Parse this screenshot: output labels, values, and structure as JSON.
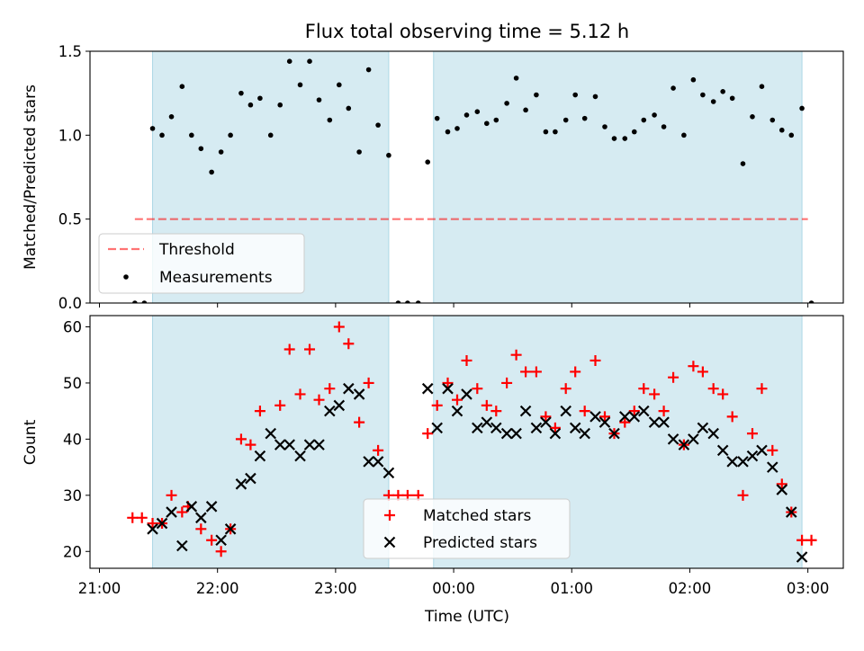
{
  "figure": {
    "title": "Flux total observing time = 5.12 h",
    "xlabel": "Time (UTC)",
    "x_tick_labels": [
      "21:00",
      "22:00",
      "23:00",
      "00:00",
      "01:00",
      "02:00",
      "03:00"
    ]
  },
  "colors": {
    "shade": "#add8e6",
    "threshold": "#ff0000",
    "measurement": "#000000",
    "matched": "#ff0000",
    "predicted": "#000000"
  },
  "chart_data": [
    {
      "type": "scatter",
      "ylabel": "Matched/Predicted stars",
      "x_unit": "hours since 21:00 UTC",
      "xlim": [
        -0.08,
        6.3
      ],
      "ylim": [
        0,
        1.5
      ],
      "y_tick_labels": [
        "0.0",
        "0.5",
        "1.0",
        "1.5"
      ],
      "y_ticks": [
        0,
        0.5,
        1.0,
        1.5
      ],
      "shaded_intervals": [
        [
          0.45,
          2.45
        ],
        [
          2.83,
          5.95
        ]
      ],
      "threshold": {
        "name": "Threshold",
        "value": 0.5,
        "x_range": [
          0.3,
          6.0
        ]
      },
      "legend": {
        "placement": "lower-left",
        "entries": [
          "Threshold",
          "Measurements"
        ]
      },
      "series": [
        {
          "name": "Measurements",
          "points": [
            [
              0.3,
              0.0
            ],
            [
              0.38,
              0.0
            ],
            [
              0.45,
              1.04
            ],
            [
              0.53,
              1.0
            ],
            [
              0.61,
              1.11
            ],
            [
              0.7,
              1.29
            ],
            [
              0.78,
              1.0
            ],
            [
              0.86,
              0.92
            ],
            [
              0.95,
              0.78
            ],
            [
              1.03,
              0.9
            ],
            [
              1.11,
              1.0
            ],
            [
              1.2,
              1.25
            ],
            [
              1.28,
              1.18
            ],
            [
              1.36,
              1.22
            ],
            [
              1.45,
              1.0
            ],
            [
              1.53,
              1.18
            ],
            [
              1.61,
              1.44
            ],
            [
              1.7,
              1.3
            ],
            [
              1.78,
              1.44
            ],
            [
              1.86,
              1.21
            ],
            [
              1.95,
              1.09
            ],
            [
              2.03,
              1.3
            ],
            [
              2.11,
              1.16
            ],
            [
              2.2,
              0.9
            ],
            [
              2.28,
              1.39
            ],
            [
              2.36,
              1.06
            ],
            [
              2.45,
              0.88
            ],
            [
              2.53,
              0.0
            ],
            [
              2.61,
              0.0
            ],
            [
              2.7,
              0.0
            ],
            [
              2.78,
              0.84
            ],
            [
              2.86,
              1.1
            ],
            [
              2.95,
              1.02
            ],
            [
              3.03,
              1.04
            ],
            [
              3.11,
              1.12
            ],
            [
              3.2,
              1.14
            ],
            [
              3.28,
              1.07
            ],
            [
              3.36,
              1.09
            ],
            [
              3.45,
              1.19
            ],
            [
              3.53,
              1.34
            ],
            [
              3.61,
              1.15
            ],
            [
              3.7,
              1.24
            ],
            [
              3.78,
              1.02
            ],
            [
              3.86,
              1.02
            ],
            [
              3.95,
              1.09
            ],
            [
              4.03,
              1.24
            ],
            [
              4.11,
              1.1
            ],
            [
              4.2,
              1.23
            ],
            [
              4.28,
              1.05
            ],
            [
              4.36,
              0.98
            ],
            [
              4.45,
              0.98
            ],
            [
              4.53,
              1.02
            ],
            [
              4.61,
              1.09
            ],
            [
              4.7,
              1.12
            ],
            [
              4.78,
              1.05
            ],
            [
              4.86,
              1.28
            ],
            [
              4.95,
              1.0
            ],
            [
              5.03,
              1.33
            ],
            [
              5.11,
              1.24
            ],
            [
              5.2,
              1.2
            ],
            [
              5.28,
              1.26
            ],
            [
              5.36,
              1.22
            ],
            [
              5.45,
              0.83
            ],
            [
              5.53,
              1.11
            ],
            [
              5.61,
              1.29
            ],
            [
              5.7,
              1.09
            ],
            [
              5.78,
              1.03
            ],
            [
              5.86,
              1.0
            ],
            [
              5.95,
              1.16
            ],
            [
              6.03,
              0.0
            ]
          ]
        }
      ]
    },
    {
      "type": "scatter",
      "ylabel": "Count",
      "x_unit": "hours since 21:00 UTC",
      "xlim": [
        -0.08,
        6.3
      ],
      "ylim": [
        17,
        62
      ],
      "y_tick_labels": [
        "20",
        "30",
        "40",
        "50",
        "60"
      ],
      "y_ticks": [
        20,
        30,
        40,
        50,
        60
      ],
      "shaded_intervals": [
        [
          0.45,
          2.45
        ],
        [
          2.83,
          5.95
        ]
      ],
      "legend": {
        "placement": "lower-center",
        "entries": [
          "Matched stars",
          "Predicted stars"
        ]
      },
      "series": [
        {
          "name": "Matched stars",
          "marker": "plus",
          "points": [
            [
              0.28,
              26
            ],
            [
              0.36,
              26
            ],
            [
              0.45,
              25
            ],
            [
              0.53,
              25
            ],
            [
              0.61,
              30
            ],
            [
              0.7,
              27
            ],
            [
              0.75,
              28
            ],
            [
              0.86,
              24
            ],
            [
              0.95,
              22
            ],
            [
              1.03,
              20
            ],
            [
              1.11,
              24
            ],
            [
              1.2,
              40
            ],
            [
              1.28,
              39
            ],
            [
              1.36,
              45
            ],
            [
              1.53,
              46
            ],
            [
              1.61,
              56
            ],
            [
              1.7,
              48
            ],
            [
              1.78,
              56
            ],
            [
              1.86,
              47
            ],
            [
              1.95,
              49
            ],
            [
              2.03,
              60
            ],
            [
              2.11,
              57
            ],
            [
              2.2,
              43
            ],
            [
              2.28,
              50
            ],
            [
              2.36,
              38
            ],
            [
              2.45,
              30
            ],
            [
              2.53,
              30
            ],
            [
              2.61,
              30
            ],
            [
              2.7,
              30
            ],
            [
              2.78,
              41
            ],
            [
              2.86,
              46
            ],
            [
              2.95,
              50
            ],
            [
              3.03,
              47
            ],
            [
              3.11,
              54
            ],
            [
              3.2,
              49
            ],
            [
              3.28,
              46
            ],
            [
              3.36,
              45
            ],
            [
              3.45,
              50
            ],
            [
              3.53,
              55
            ],
            [
              3.61,
              52
            ],
            [
              3.7,
              52
            ],
            [
              3.78,
              44
            ],
            [
              3.86,
              42
            ],
            [
              3.95,
              49
            ],
            [
              4.03,
              52
            ],
            [
              4.11,
              45
            ],
            [
              4.2,
              54
            ],
            [
              4.28,
              44
            ],
            [
              4.36,
              41
            ],
            [
              4.45,
              43
            ],
            [
              4.53,
              45
            ],
            [
              4.61,
              49
            ],
            [
              4.7,
              48
            ],
            [
              4.78,
              45
            ],
            [
              4.86,
              51
            ],
            [
              4.95,
              39
            ],
            [
              5.03,
              53
            ],
            [
              5.11,
              52
            ],
            [
              5.2,
              49
            ],
            [
              5.28,
              48
            ],
            [
              5.36,
              44
            ],
            [
              5.45,
              30
            ],
            [
              5.53,
              41
            ],
            [
              5.61,
              49
            ],
            [
              5.7,
              38
            ],
            [
              5.78,
              32
            ],
            [
              5.86,
              27
            ],
            [
              5.95,
              22
            ],
            [
              6.03,
              22
            ]
          ]
        },
        {
          "name": "Predicted stars",
          "marker": "x",
          "points": [
            [
              0.45,
              24
            ],
            [
              0.53,
              25
            ],
            [
              0.61,
              27
            ],
            [
              0.7,
              21
            ],
            [
              0.78,
              28
            ],
            [
              0.86,
              26
            ],
            [
              0.95,
              28
            ],
            [
              1.03,
              22
            ],
            [
              1.11,
              24
            ],
            [
              1.2,
              32
            ],
            [
              1.28,
              33
            ],
            [
              1.36,
              37
            ],
            [
              1.45,
              41
            ],
            [
              1.53,
              39
            ],
            [
              1.61,
              39
            ],
            [
              1.7,
              37
            ],
            [
              1.78,
              39
            ],
            [
              1.86,
              39
            ],
            [
              1.95,
              45
            ],
            [
              2.03,
              46
            ],
            [
              2.11,
              49
            ],
            [
              2.2,
              48
            ],
            [
              2.28,
              36
            ],
            [
              2.36,
              36
            ],
            [
              2.45,
              34
            ],
            [
              2.78,
              49
            ],
            [
              2.86,
              42
            ],
            [
              2.95,
              49
            ],
            [
              3.03,
              45
            ],
            [
              3.11,
              48
            ],
            [
              3.2,
              42
            ],
            [
              3.28,
              43
            ],
            [
              3.36,
              42
            ],
            [
              3.45,
              41
            ],
            [
              3.53,
              41
            ],
            [
              3.61,
              45
            ],
            [
              3.7,
              42
            ],
            [
              3.78,
              43
            ],
            [
              3.86,
              41
            ],
            [
              3.95,
              45
            ],
            [
              4.03,
              42
            ],
            [
              4.11,
              41
            ],
            [
              4.2,
              44
            ],
            [
              4.28,
              43
            ],
            [
              4.36,
              41
            ],
            [
              4.45,
              44
            ],
            [
              4.53,
              44
            ],
            [
              4.61,
              45
            ],
            [
              4.7,
              43
            ],
            [
              4.78,
              43
            ],
            [
              4.86,
              40
            ],
            [
              4.95,
              39
            ],
            [
              5.03,
              40
            ],
            [
              5.11,
              42
            ],
            [
              5.2,
              41
            ],
            [
              5.28,
              38
            ],
            [
              5.36,
              36
            ],
            [
              5.45,
              36
            ],
            [
              5.53,
              37
            ],
            [
              5.61,
              38
            ],
            [
              5.7,
              35
            ],
            [
              5.78,
              31
            ],
            [
              5.86,
              27
            ],
            [
              5.95,
              19
            ]
          ]
        }
      ]
    }
  ]
}
